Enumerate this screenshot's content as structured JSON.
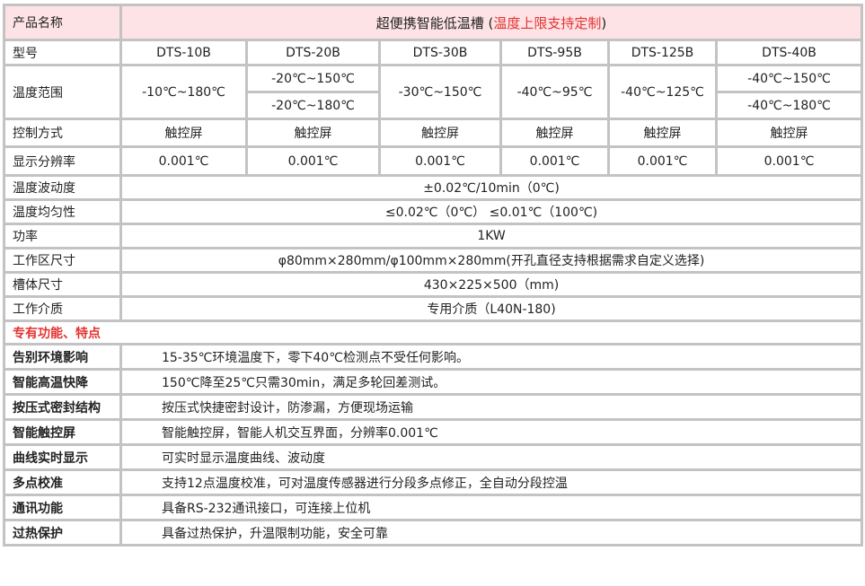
{
  "header": {
    "label": "产品名称",
    "title_prefix": "超便携智能低温槽 (",
    "title_highlight": "温度上限支持定制",
    "title_suffix": ")"
  },
  "colors": {
    "accent_red": "#e4322f",
    "header_bg": "#fde3e6",
    "grid": "#c3c3c3"
  },
  "model": {
    "label": "型号",
    "values": [
      "DTS-10B",
      "DTS-20B",
      "DTS-30B",
      "DTS-95B",
      "DTS-125B",
      "DTS-40B"
    ]
  },
  "range": {
    "label": "温度范围",
    "v10": "-10℃~180℃",
    "v20a": "-20℃~150℃",
    "v20b": "-20℃~180℃",
    "v30": "-30℃~150℃",
    "v95": "-40℃~95℃",
    "v125": "-40℃~125℃",
    "v40a": "-40℃~150℃",
    "v40b": "-40℃~180℃"
  },
  "control": {
    "label": "控制方式",
    "values": [
      "触控屏",
      "触控屏",
      "触控屏",
      "触控屏",
      "触控屏",
      "触控屏"
    ]
  },
  "resolution": {
    "label": "显示分辨率",
    "values": [
      "0.001℃",
      "0.001℃",
      "0.001℃",
      "0.001℃",
      "0.001℃",
      "0.001℃"
    ]
  },
  "specs": [
    {
      "label": "温度波动度",
      "value": "±0.02℃/10min（0℃)"
    },
    {
      "label": "温度均匀性",
      "value": "≤0.02℃（0℃）   ≤0.01℃（100℃)"
    },
    {
      "label": "功率",
      "value": "1KW"
    },
    {
      "label": "工作区尺寸",
      "value": "φ80mm×280mm/φ100mm×280mm(开孔直径支持根据需求自定义选择)"
    },
    {
      "label": "槽体尺寸",
      "value": "430×225×500（mm)"
    },
    {
      "label": "工作介质",
      "value": "专用介质（L40N-180)"
    }
  ],
  "section_title": "专有功能、特点",
  "features": [
    {
      "label": "告别环境影响",
      "value": "15-35℃环境温度下，零下40℃检测点不受任何影响。"
    },
    {
      "label": "智能高温快降",
      "value": "150℃降至25℃只需30min，满足多轮回差测试。"
    },
    {
      "label": "按压式密封结构",
      "value": "按压式快捷密封设计，防渗漏，方便现场运输"
    },
    {
      "label": "智能触控屏",
      "value": "智能触控屏，智能人机交互界面，分辨率0.001℃"
    },
    {
      "label": "曲线实时显示",
      "value": "可实时显示温度曲线、波动度"
    },
    {
      "label": "多点校准",
      "value": "支持12点温度校准，可对温度传感器进行分段多点修正，全自动分段控温"
    },
    {
      "label": "通讯功能",
      "value": "具备RS-232通讯接口，可连接上位机"
    },
    {
      "label": "过热保护",
      "value": "具备过热保护，升温限制功能，安全可靠"
    }
  ]
}
